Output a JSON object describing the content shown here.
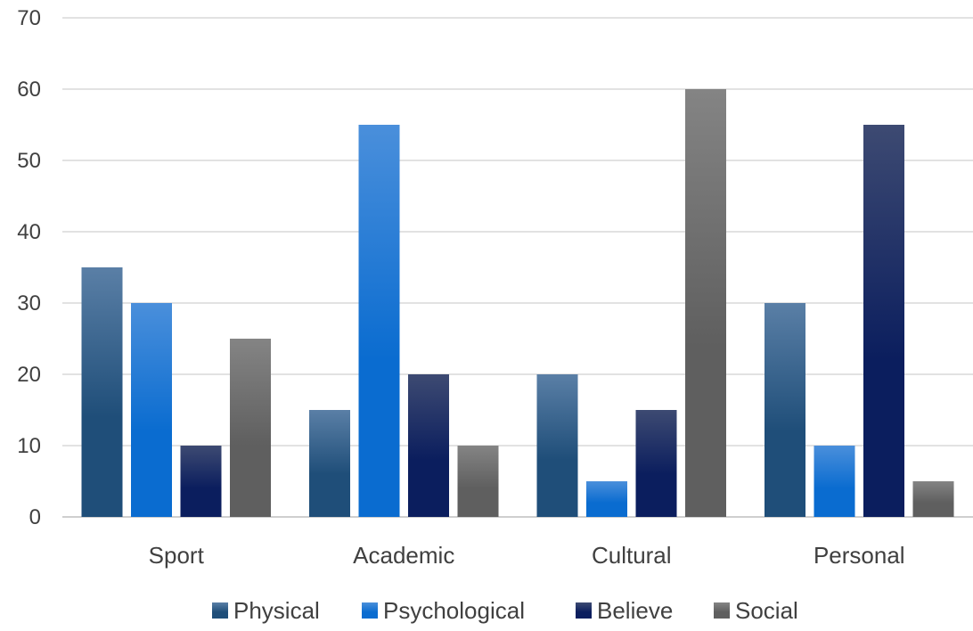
{
  "chart_data": {
    "type": "bar",
    "title": "",
    "xlabel": "",
    "ylabel": "",
    "categories": [
      "Sport",
      "Academic",
      "Cultural",
      "Personal"
    ],
    "ylim": [
      0,
      70
    ],
    "yticks": [
      0,
      10,
      20,
      30,
      40,
      50,
      60,
      70
    ],
    "grid": true,
    "legend_position": "bottom",
    "series": [
      {
        "name": "Physical",
        "values": [
          35,
          15,
          20,
          30
        ],
        "colors": [
          "#5a7fa6",
          "#1f4e79"
        ]
      },
      {
        "name": "Psychological",
        "values": [
          30,
          55,
          5,
          10
        ],
        "colors": [
          "#4a8fdb",
          "#0a6cd0"
        ]
      },
      {
        "name": "Believe",
        "values": [
          10,
          20,
          15,
          55
        ],
        "colors": [
          "#3d4a72",
          "#0b1e5e"
        ]
      },
      {
        "name": "Social",
        "values": [
          25,
          10,
          60,
          5
        ],
        "colors": [
          "#848484",
          "#5f5f5f"
        ]
      }
    ]
  }
}
